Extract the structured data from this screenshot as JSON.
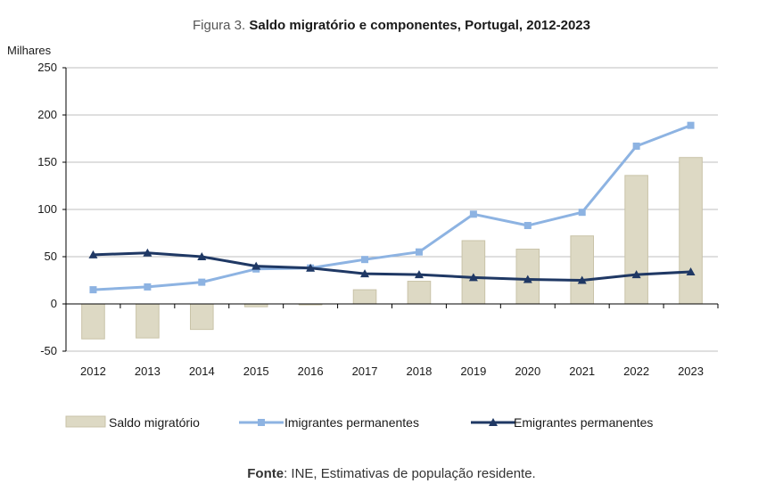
{
  "figure": {
    "prefix": "Figura 3.",
    "title": "Saldo migratório e componentes, Portugal, 2012-2023"
  },
  "source": {
    "label": "Fonte",
    "text": ": INE, Estimativas de população residente."
  },
  "colors": {
    "bar_fill": "#ddd9c4",
    "bar_stroke": "#c9c3a8",
    "imigrantes": "#8db3e2",
    "emigrantes": "#1f3864",
    "grid": "#bfbfbf",
    "axis": "#000000"
  },
  "chart_data": {
    "type": "bar",
    "title": "Saldo migratório e componentes, Portugal, 2012-2023",
    "ylabel": "Milhares",
    "xlabel": "",
    "ylim": [
      -50,
      250
    ],
    "yticks": [
      -50,
      0,
      50,
      100,
      150,
      200,
      250
    ],
    "categories": [
      "2012",
      "2013",
      "2014",
      "2015",
      "2016",
      "2017",
      "2018",
      "2019",
      "2020",
      "2021",
      "2022",
      "2023"
    ],
    "grid": true,
    "legend_position": "bottom",
    "series": [
      {
        "name": "Saldo migratório",
        "kind": "bar",
        "values": [
          -37,
          -36,
          -27,
          -3,
          -1,
          15,
          24,
          67,
          58,
          72,
          136,
          155
        ]
      },
      {
        "name": "Imigrantes permanentes",
        "kind": "line",
        "marker": "square",
        "values": [
          15,
          18,
          23,
          37,
          38,
          47,
          55,
          95,
          83,
          97,
          167,
          189
        ]
      },
      {
        "name": "Emigrantes permanentes",
        "kind": "line",
        "marker": "triangle",
        "values": [
          52,
          54,
          50,
          40,
          38,
          32,
          31,
          28,
          26,
          25,
          31,
          34
        ]
      }
    ]
  }
}
